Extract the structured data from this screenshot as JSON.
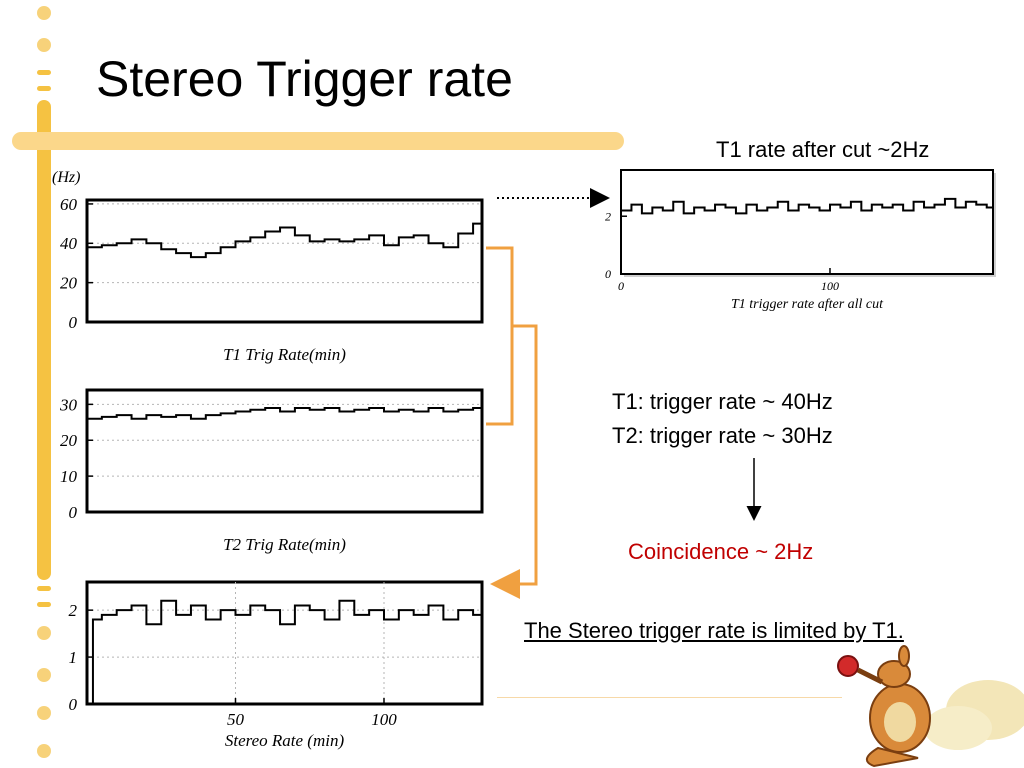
{
  "slide": {
    "title": "Stereo Trigger rate",
    "note_t1_cut": "T1 rate after cut ~2Hz",
    "line_t1": "T1: trigger rate ~ 40Hz",
    "line_t2": "T2: trigger rate ~ 30Hz",
    "coincidence": "Coincidence ~ 2Hz",
    "conclusion": "The Stereo trigger rate is limited by T1."
  },
  "colors": {
    "accent": "#f5c242",
    "arrow_orange": "#f0a040",
    "coincidence_red": "#c00000",
    "histogram": "#000000"
  },
  "chart_data": [
    {
      "id": "t1",
      "type": "line",
      "title": "",
      "unit_label": "(Hz)",
      "xlabel": "T1 Trig Rate(min)",
      "ylabel": "",
      "ylim": [
        0,
        62
      ],
      "yticks": [
        0,
        20,
        40,
        60
      ],
      "xticks": [],
      "xlim": [
        0,
        133
      ],
      "grid": true,
      "series": [
        {
          "x": [
            0,
            5,
            10,
            15,
            20,
            25,
            30,
            35,
            40,
            45,
            50,
            55,
            60,
            65,
            70,
            75,
            80,
            85,
            90,
            95,
            100,
            105,
            110,
            115,
            120,
            125,
            130,
            133
          ],
          "values": [
            38,
            39,
            40,
            42,
            40,
            37,
            35,
            33,
            35,
            38,
            41,
            43,
            46,
            48,
            44,
            41,
            42,
            41,
            42,
            44,
            39,
            43,
            44,
            40,
            38,
            45,
            50,
            49
          ]
        }
      ]
    },
    {
      "id": "t2",
      "type": "line",
      "title": "",
      "xlabel": "T2 Trig Rate(min)",
      "ylabel": "",
      "ylim": [
        0,
        34
      ],
      "yticks": [
        0,
        10,
        20,
        30
      ],
      "xticks": [],
      "xlim": [
        0,
        133
      ],
      "grid": true,
      "series": [
        {
          "x": [
            0,
            5,
            10,
            15,
            20,
            25,
            30,
            35,
            40,
            45,
            50,
            55,
            60,
            65,
            70,
            75,
            80,
            85,
            90,
            95,
            100,
            105,
            110,
            115,
            120,
            125,
            130,
            133
          ],
          "values": [
            26,
            26.5,
            27,
            26,
            27,
            26.5,
            27,
            26,
            27,
            27.5,
            28,
            28.5,
            29,
            28,
            29,
            28.5,
            29,
            28,
            28.5,
            29,
            28,
            28.5,
            28,
            29,
            28,
            28.5,
            29,
            29
          ]
        }
      ]
    },
    {
      "id": "stereo",
      "type": "line",
      "title": "",
      "xlabel": "Stereo Rate (min)",
      "ylabel": "",
      "ylim": [
        0,
        2.6
      ],
      "yticks": [
        0,
        1,
        2
      ],
      "xticks": [
        50,
        100
      ],
      "xlim": [
        0,
        133
      ],
      "grid": true,
      "series": [
        {
          "x": [
            0,
            2,
            5,
            10,
            15,
            20,
            25,
            30,
            35,
            40,
            45,
            50,
            55,
            60,
            65,
            70,
            75,
            80,
            85,
            90,
            95,
            100,
            105,
            110,
            115,
            120,
            125,
            130,
            133
          ],
          "values": [
            0,
            1.8,
            1.9,
            2.0,
            2.1,
            1.7,
            2.2,
            1.9,
            2.1,
            1.8,
            2.0,
            1.9,
            2.1,
            2.0,
            1.7,
            2.1,
            2.0,
            1.8,
            2.2,
            1.9,
            2.0,
            1.8,
            2.0,
            1.9,
            2.1,
            1.8,
            2.0,
            1.9,
            1.8
          ]
        }
      ]
    },
    {
      "id": "t1cut",
      "type": "line",
      "title": "",
      "xlabel": "T1 trigger rate after all cut",
      "ylabel": "",
      "ylim": [
        0,
        3.6
      ],
      "yticks": [
        0,
        2
      ],
      "xticks": [
        0,
        100
      ],
      "xlim": [
        0,
        178
      ],
      "grid": false,
      "series": [
        {
          "x": [
            0,
            5,
            10,
            15,
            20,
            25,
            30,
            35,
            40,
            45,
            50,
            55,
            60,
            65,
            70,
            75,
            80,
            85,
            90,
            95,
            100,
            105,
            110,
            115,
            120,
            125,
            130,
            135,
            140,
            145,
            150,
            155,
            160,
            165,
            170,
            175,
            178
          ],
          "values": [
            2.2,
            2.4,
            2.1,
            2.3,
            2.2,
            2.5,
            2.1,
            2.3,
            2.2,
            2.4,
            2.3,
            2.1,
            2.4,
            2.2,
            2.3,
            2.5,
            2.2,
            2.4,
            2.3,
            2.2,
            2.4,
            2.3,
            2.5,
            2.2,
            2.4,
            2.3,
            2.4,
            2.2,
            2.5,
            2.3,
            2.4,
            2.6,
            2.3,
            2.5,
            2.4,
            2.3,
            2.3
          ]
        }
      ]
    }
  ]
}
